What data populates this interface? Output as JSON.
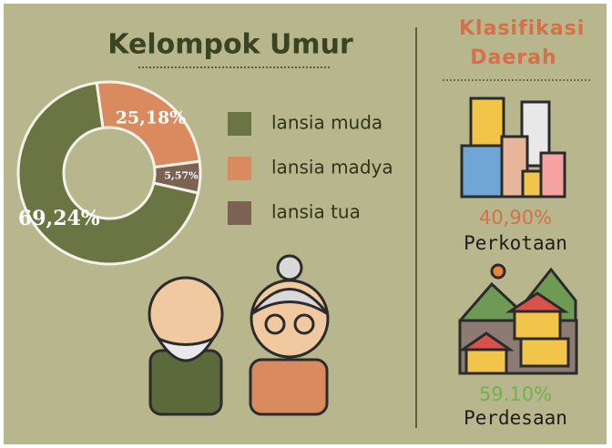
{
  "chart_data": {
    "type": "pie",
    "donut": true,
    "title": "Kelompok Umur",
    "categories": [
      "lansia muda",
      "lansia madya",
      "lansia tua"
    ],
    "values": [
      69.24,
      25.18,
      5.57
    ],
    "value_labels": [
      "69,24%",
      "25,18%",
      "5,57%"
    ],
    "colors": [
      "#6b7443",
      "#d98a5f",
      "#7b6252"
    ]
  },
  "regions": {
    "title": "Klasifikasi Daerah",
    "items": [
      {
        "value": "40,90%",
        "label": "Perkotaan",
        "color": "#d4704a"
      },
      {
        "value": "59.10%",
        "label": "Perdesaan",
        "color": "#6fb24f"
      }
    ]
  }
}
